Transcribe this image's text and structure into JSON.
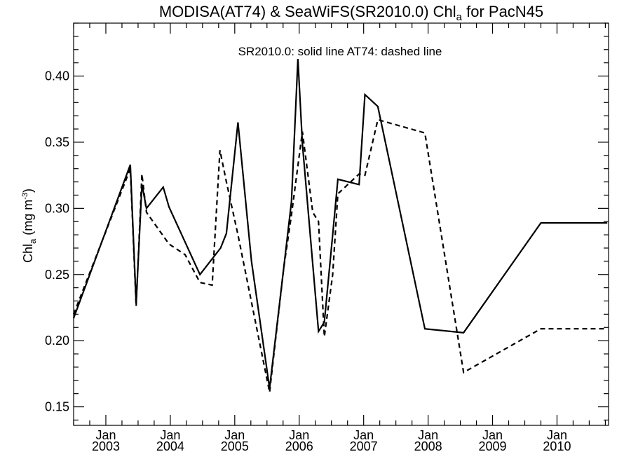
{
  "chart_data": {
    "type": "line",
    "title": {
      "main": "MODISA(AT74) & SeaWiFS(SR2010.0)  Chl",
      "sub": "a",
      "tail": " for PacN45"
    },
    "legend_text": "SR2010.0: solid line   AT74: dashed line",
    "ylabel": {
      "main": "Chl",
      "sub": "a",
      "unit_pre": " (mg m",
      "unit_sup": "-3",
      "unit_post": ")"
    },
    "xlabel": "",
    "x_ticks": [
      {
        "x": 2003.0,
        "month": "Jan",
        "year": "2003"
      },
      {
        "x": 2004.0,
        "month": "Jan",
        "year": "2004"
      },
      {
        "x": 2005.0,
        "month": "Jan",
        "year": "2005"
      },
      {
        "x": 2006.0,
        "month": "Jan",
        "year": "2006"
      },
      {
        "x": 2007.0,
        "month": "Jan",
        "year": "2007"
      },
      {
        "x": 2008.0,
        "month": "Jan",
        "year": "2008"
      },
      {
        "x": 2009.0,
        "month": "Jan",
        "year": "2009"
      },
      {
        "x": 2010.0,
        "month": "Jan",
        "year": "2010"
      }
    ],
    "y_ticks": [
      "0.15",
      "0.20",
      "0.25",
      "0.30",
      "0.35",
      "0.40"
    ],
    "xlim": [
      2002.5,
      2010.8
    ],
    "ylim": [
      0.136,
      0.44
    ],
    "grid": false,
    "series": [
      {
        "name": "SR2010.0",
        "style": "solid",
        "color": "#000000",
        "x": [
          2002.5,
          2003.38,
          2003.47,
          2003.56,
          2003.63,
          2003.89,
          2003.98,
          2004.46,
          2004.78,
          2004.87,
          2005.05,
          2005.26,
          2005.54,
          2005.76,
          2005.88,
          2005.98,
          2006.05,
          2006.3,
          2006.39,
          2006.52,
          2006.6,
          2006.93,
          2007.02,
          2007.22,
          2007.95,
          2008.55,
          2009.75,
          2010.78
        ],
        "y": [
          0.217,
          0.333,
          0.228,
          0.318,
          0.3,
          0.316,
          0.301,
          0.25,
          0.27,
          0.281,
          0.365,
          0.26,
          0.164,
          0.255,
          0.305,
          0.413,
          0.349,
          0.207,
          0.214,
          0.28,
          0.322,
          0.318,
          0.386,
          0.377,
          0.209,
          0.206,
          0.289,
          0.289
        ]
      },
      {
        "name": "AT74",
        "style": "dashed",
        "color": "#000000",
        "x": [
          2002.5,
          2003.38,
          2003.47,
          2003.56,
          2003.63,
          2003.98,
          2004.23,
          2004.46,
          2004.65,
          2004.77,
          2004.87,
          2005.05,
          2005.54,
          2005.76,
          2005.88,
          2006.05,
          2006.21,
          2006.3,
          2006.39,
          2006.52,
          2006.6,
          2006.93,
          2007.02,
          2007.22,
          2007.95,
          2008.55,
          2009.75,
          2010.78
        ],
        "y": [
          0.22,
          0.33,
          0.226,
          0.326,
          0.297,
          0.273,
          0.265,
          0.244,
          0.242,
          0.344,
          0.32,
          0.28,
          0.161,
          0.255,
          0.295,
          0.358,
          0.297,
          0.29,
          0.203,
          0.25,
          0.311,
          0.326,
          0.325,
          0.367,
          0.357,
          0.176,
          0.209,
          0.209
        ]
      }
    ]
  }
}
